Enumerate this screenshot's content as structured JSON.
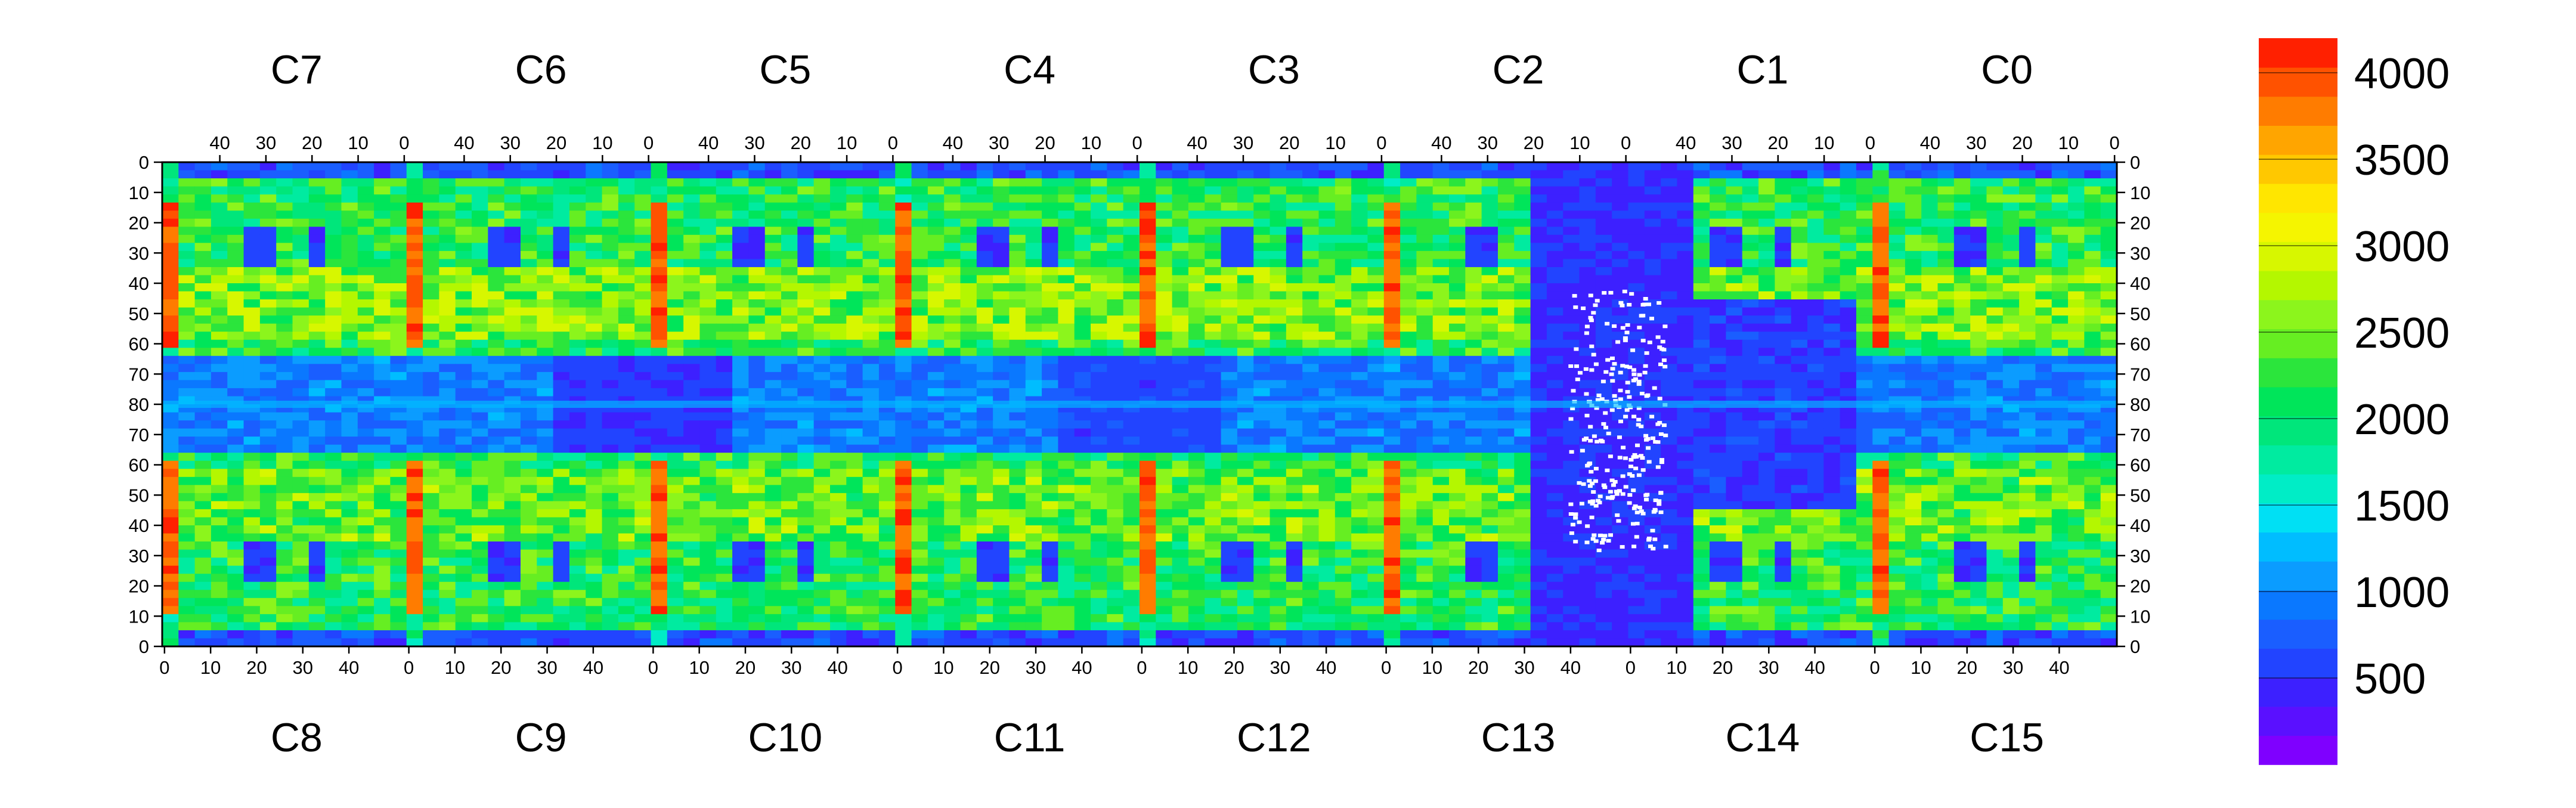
{
  "chart_data": {
    "type": "heatmap",
    "title": "",
    "xlabel": "",
    "ylabel": "",
    "top_chip_labels": [
      "C7",
      "C6",
      "C5",
      "C4",
      "C3",
      "C2",
      "C1",
      "C0"
    ],
    "bottom_chip_labels": [
      "C8",
      "C9",
      "C10",
      "C11",
      "C12",
      "C13",
      "C14",
      "C15"
    ],
    "top_column_ticks": [
      "40",
      "30",
      "20",
      "10",
      "0"
    ],
    "bottom_column_ticks": [
      "0",
      "10",
      "20",
      "30",
      "40"
    ],
    "row_ticks_top_half": [
      "0",
      "10",
      "20",
      "30",
      "40",
      "50",
      "60",
      "70",
      "80"
    ],
    "row_ticks_bottom_half": [
      "70",
      "60",
      "50",
      "40",
      "30",
      "20",
      "10",
      "0"
    ],
    "colorbar": {
      "range": [
        0,
        4200
      ],
      "tick_labels": [
        "4000",
        "3500",
        "3000",
        "2500",
        "2000",
        "1500",
        "1000",
        "500"
      ],
      "tick_values": [
        4000,
        3500,
        3000,
        2500,
        2000,
        1500,
        1000,
        500
      ],
      "colors": [
        "#7F00FF",
        "#5A10FF",
        "#3D20FF",
        "#2244FF",
        "#1A5EFF",
        "#0A78FF",
        "#0B9CFF",
        "#00BDFF",
        "#00E0F4",
        "#00EDC6",
        "#00EBA0",
        "#00E67B",
        "#00E55A",
        "#2BE53C",
        "#66EE22",
        "#8CF51C",
        "#B4F700",
        "#D7F700",
        "#F5F500",
        "#FFE600",
        "#FFC800",
        "#FFA500",
        "#FF7C00",
        "#FF5200",
        "#FF2000"
      ]
    },
    "grid": "chip map; hot columns (>3500) at every chip boundary; C13/C14 region mostly 0-500 with saturated white dots"
  }
}
